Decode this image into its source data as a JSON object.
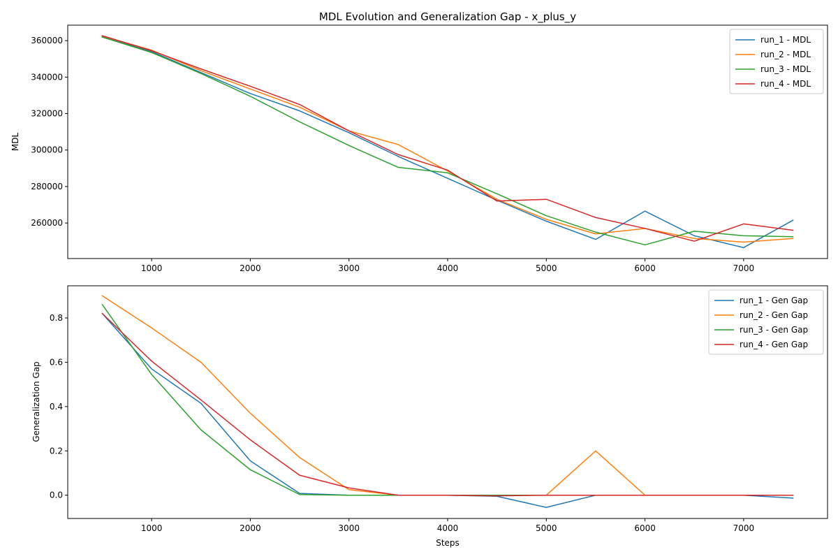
{
  "chart_data": [
    {
      "type": "line",
      "title": "MDL Evolution and Generalization Gap - x_plus_y",
      "xlabel": "",
      "ylabel": "MDL",
      "x": [
        500,
        1000,
        1500,
        2000,
        2500,
        3000,
        3500,
        4000,
        4500,
        5000,
        5500,
        6000,
        6500,
        7000,
        7500
      ],
      "xlim": [
        150,
        7850
      ],
      "ylim": [
        240500,
        368500
      ],
      "xticks": [
        1000,
        2000,
        3000,
        4000,
        5000,
        6000,
        7000
      ],
      "yticks": [
        260000,
        280000,
        300000,
        320000,
        340000,
        360000
      ],
      "legend": "top-right",
      "grid": false,
      "series": [
        {
          "name": "run_1 - MDL",
          "color": "#1f77b4",
          "values": [
            362000,
            354000,
            342500,
            331000,
            321500,
            309500,
            296500,
            284500,
            272500,
            261000,
            251000,
            266500,
            253000,
            246500,
            261500
          ]
        },
        {
          "name": "run_2 - MDL",
          "color": "#ff7f0e",
          "values": [
            362500,
            354800,
            343500,
            333500,
            323500,
            310500,
            303000,
            288500,
            273000,
            262000,
            254000,
            257000,
            251500,
            249500,
            251500
          ]
        },
        {
          "name": "run_3 - MDL",
          "color": "#2ca02c",
          "values": [
            362000,
            353500,
            342000,
            329500,
            315500,
            302500,
            290500,
            287500,
            276000,
            264000,
            255000,
            248000,
            255500,
            253000,
            252500
          ]
        },
        {
          "name": "run_4 - MDL",
          "color": "#d62728",
          "values": [
            362700,
            354500,
            344500,
            335000,
            325000,
            310500,
            297500,
            289000,
            272000,
            273000,
            263000,
            257000,
            250000,
            259500,
            256000
          ]
        }
      ]
    },
    {
      "type": "line",
      "title": "",
      "xlabel": "Steps",
      "ylabel": "Generalization Gap",
      "x": [
        500,
        1000,
        1500,
        2000,
        2500,
        3000,
        3500,
        4000,
        4500,
        5000,
        5500,
        6000,
        6500,
        7000,
        7500
      ],
      "xlim": [
        150,
        7850
      ],
      "ylim": [
        -0.105,
        0.945
      ],
      "xticks": [
        1000,
        2000,
        3000,
        4000,
        5000,
        6000,
        7000
      ],
      "yticks": [
        0.0,
        0.2,
        0.4,
        0.6,
        0.8
      ],
      "ytick_labels": [
        "0.0",
        "0.2",
        "0.4",
        "0.6",
        "0.8"
      ],
      "legend": "top-right",
      "grid": false,
      "series": [
        {
          "name": "run_1 - Gen Gap",
          "color": "#1f77b4",
          "values": [
            0.82,
            0.57,
            0.415,
            0.155,
            0.008,
            0.0,
            0.0,
            0.0,
            -0.005,
            -0.055,
            0.0,
            0.0,
            0.0,
            0.0,
            -0.013
          ]
        },
        {
          "name": "run_2 - Gen Gap",
          "color": "#ff7f0e",
          "values": [
            0.9,
            0.755,
            0.6,
            0.37,
            0.17,
            0.025,
            0.0,
            0.0,
            0.0,
            0.0,
            0.2,
            0.0,
            0.0,
            0.0,
            0.0
          ]
        },
        {
          "name": "run_3 - Gen Gap",
          "color": "#2ca02c",
          "values": [
            0.86,
            0.545,
            0.295,
            0.115,
            0.003,
            0.0,
            0.0,
            0.0,
            0.0,
            0.0,
            0.0,
            0.0,
            0.0,
            0.0,
            0.0
          ]
        },
        {
          "name": "run_4 - Gen Gap",
          "color": "#d62728",
          "values": [
            0.82,
            0.605,
            0.43,
            0.25,
            0.09,
            0.033,
            0.0,
            0.0,
            -0.003,
            0.0,
            0.0,
            0.0,
            0.0,
            0.0,
            0.0
          ]
        }
      ]
    }
  ]
}
